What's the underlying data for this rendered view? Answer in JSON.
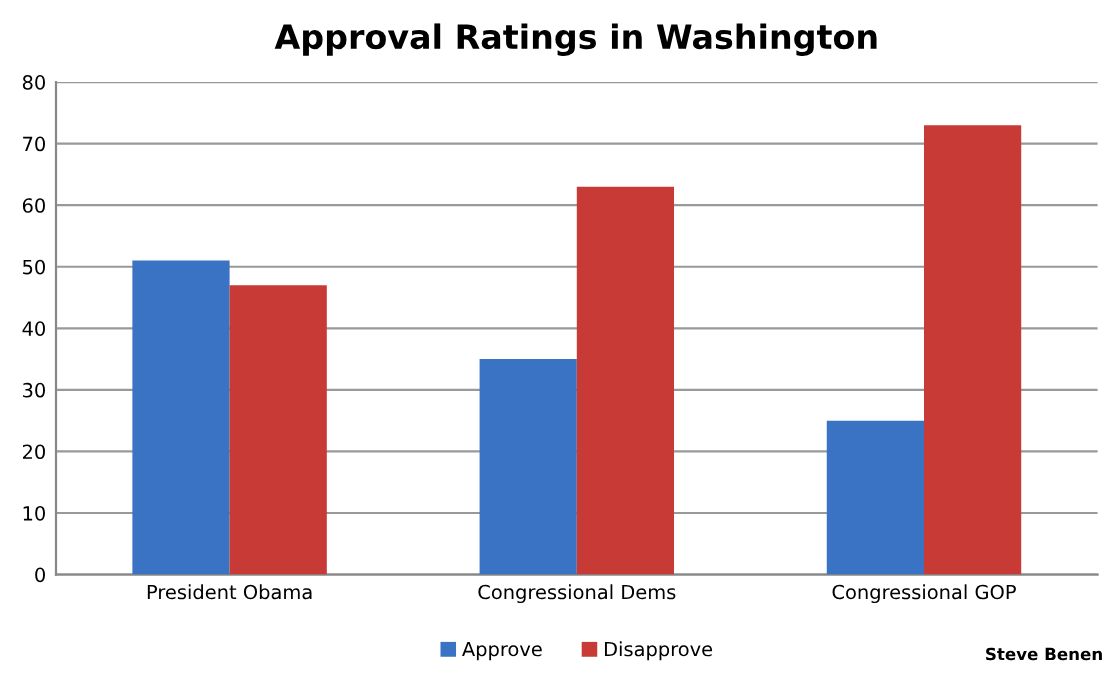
{
  "chart_data": {
    "type": "bar",
    "title": "Approval Ratings in Washington",
    "categories": [
      "President Obama",
      "Congressional Dems",
      "Congressional GOP"
    ],
    "series": [
      {
        "name": "Approve",
        "color": "#3a72c4",
        "values": [
          51,
          35,
          25
        ]
      },
      {
        "name": "Disapprove",
        "color": "#c83a36",
        "values": [
          47,
          63,
          73
        ]
      }
    ],
    "ylim": [
      0,
      80
    ],
    "yticks": [
      0,
      10,
      20,
      30,
      40,
      50,
      60,
      70,
      80
    ],
    "grid": "y",
    "legend": "bottom",
    "annotations": [
      "Steve Benen"
    ]
  }
}
